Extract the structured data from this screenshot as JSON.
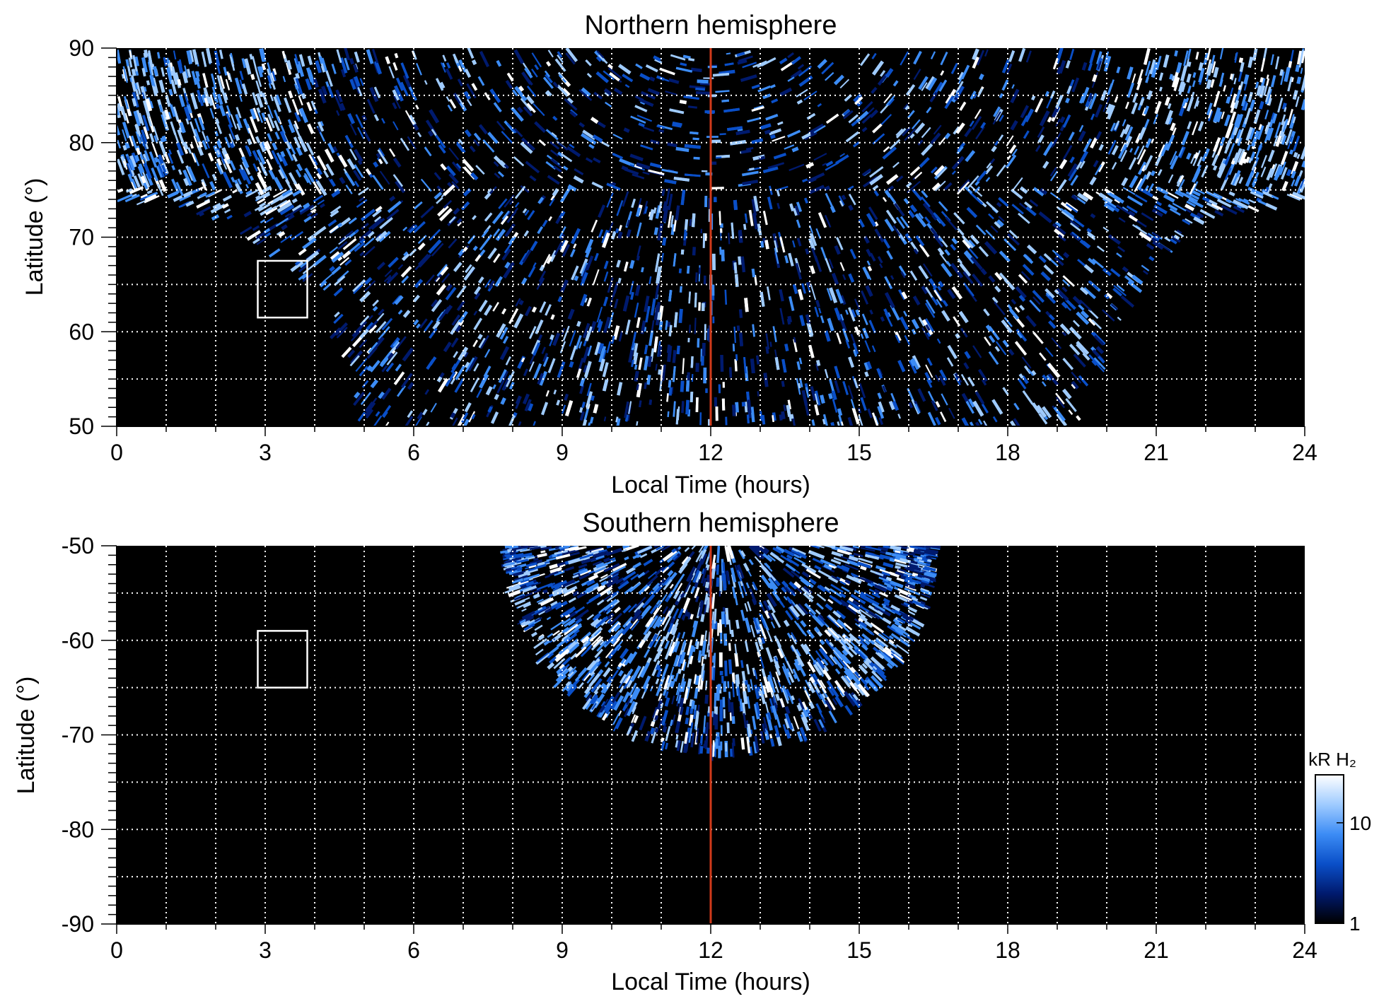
{
  "chart_data": [
    {
      "type": "heatmap",
      "title": "Northern hemisphere",
      "xlabel": "Local Time (hours)",
      "ylabel": "Latitude (°)",
      "xlim": [
        0,
        24
      ],
      "ylim": [
        50,
        90
      ],
      "xticks": [
        "0",
        "3",
        "6",
        "9",
        "12",
        "15",
        "18",
        "21",
        "24"
      ],
      "yticks": [
        "50",
        "60",
        "70",
        "80",
        "90"
      ],
      "grid": true,
      "reference_line": {
        "x": 12,
        "color": "#d03a1a"
      },
      "box": {
        "x": [
          2.85,
          3.85
        ],
        "y": [
          61.5,
          67.5
        ]
      },
      "coverage": {
        "boundary_x": [
          0,
          1,
          2,
          3,
          3.5,
          4,
          4.5,
          5,
          19.5,
          20,
          21,
          22,
          23,
          24
        ],
        "boundary_y": [
          74,
          73.5,
          72,
          69,
          67,
          64,
          59,
          50,
          50,
          59,
          68,
          72,
          73,
          73.5
        ]
      }
    },
    {
      "type": "heatmap",
      "title": "Southern hemisphere",
      "xlabel": "Local Time (hours)",
      "ylabel": "Latitude (°)",
      "xlim": [
        0,
        24
      ],
      "ylim": [
        -90,
        -50
      ],
      "xticks": [
        "0",
        "3",
        "6",
        "9",
        "12",
        "15",
        "18",
        "21",
        "24"
      ],
      "yticks": [
        "-90",
        "-80",
        "-70",
        "-60",
        "-50"
      ],
      "grid": true,
      "reference_line": {
        "x": 12,
        "color": "#d03a1a"
      },
      "box": {
        "x": [
          2.85,
          3.85
        ],
        "y": [
          -65,
          -59
        ]
      },
      "coverage": {
        "center_x": 12.2,
        "half_width_x": 4.3,
        "min_y": -72
      }
    }
  ],
  "colorbar": {
    "label": "kR H₂",
    "scale": "log",
    "range": [
      1,
      30
    ],
    "ticks": [
      "10",
      "1"
    ],
    "colors": [
      "#000000",
      "#001a6e",
      "#0a4fc8",
      "#3c8cf5",
      "#9fcbff",
      "#ffffff"
    ]
  }
}
